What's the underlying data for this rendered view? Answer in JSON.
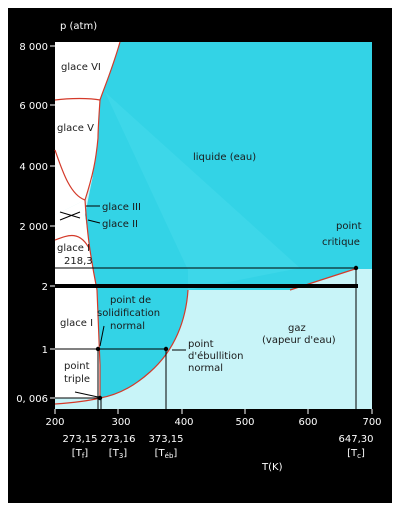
{
  "chart_data": {
    "type": "phase-diagram",
    "ylabel": "p (atm)",
    "xlabel": "T(K)",
    "y_ticks": [
      "8 000",
      "6 000",
      "4 000",
      "2 000",
      "2",
      "1",
      "0, 006"
    ],
    "x_ticks": [
      "200",
      "300",
      "400",
      "500",
      "600",
      "700"
    ],
    "x_special": [
      {
        "value": "273,15",
        "sub": "[T",
        "subscript": "f",
        "close": "]"
      },
      {
        "value": "273,16",
        "sub": "[T",
        "subscript": "3",
        "close": "]"
      },
      {
        "value": "373,15",
        "sub": "[T",
        "subscript": "éb",
        "close": "]"
      },
      {
        "value": "647,30",
        "sub": "[T",
        "subscript": "c",
        "close": "]"
      }
    ],
    "phases": {
      "glace_vi": "glace VI",
      "glace_v": "glace V",
      "glace_iii": "glace III",
      "glace_ii": "glace II",
      "glace_i_top": "glace I",
      "glace_i_top_value": "218,3",
      "glace_i": "glace I",
      "liquide": "liquide (eau)",
      "gaz_1": "gaz",
      "gaz_2": "(vapeur d'eau)"
    },
    "annotations": {
      "point_critique_1": "point",
      "point_critique_2": "critique",
      "solidification_1": "point de",
      "solidification_2": "solidification",
      "solidification_3": "normal",
      "ebullition_1": "point",
      "ebullition_2": "d'ébullition",
      "ebullition_3": "normal",
      "triple_1": "point",
      "triple_2": "triple"
    },
    "colors": {
      "frame": "#000000",
      "ice": "#ffffff",
      "liquid": "#33d3e6",
      "liquid_light": "#8ee6f0",
      "gas": "#c8f4f8",
      "boundary": "#d43a2a"
    }
  }
}
